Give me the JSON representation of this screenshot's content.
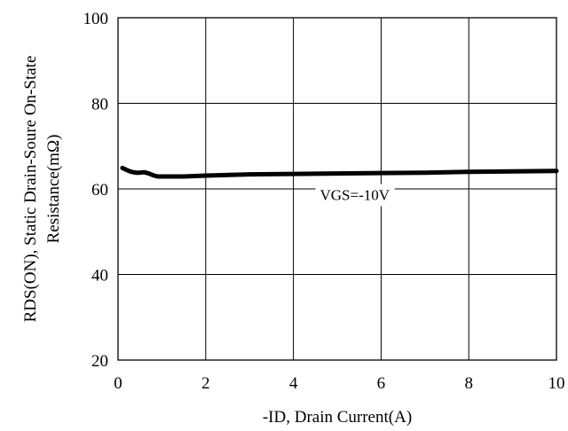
{
  "chart_data": {
    "type": "line",
    "xlim": [
      0,
      10
    ],
    "ylim": [
      20,
      100
    ],
    "x_ticks": [
      "0",
      "2",
      "4",
      "6",
      "8",
      "10"
    ],
    "y_ticks": [
      "20",
      "40",
      "60",
      "80",
      "100"
    ],
    "x_tick_values": [
      0,
      2,
      4,
      6,
      8,
      10
    ],
    "y_tick_values": [
      20,
      40,
      60,
      80,
      100
    ],
    "grid": true,
    "xlabel": "-ID, Drain Current(A)",
    "ylabel_line1": "RDS(ON), Static Drain-Soure On-State",
    "ylabel_line2": "Resistance(mΩ)",
    "series": [
      {
        "name": "VGS=-10V",
        "x": [
          0.1,
          0.2,
          0.3,
          0.4,
          0.5,
          0.6,
          0.7,
          0.8,
          0.9,
          1.0,
          1.5,
          2.0,
          3.0,
          4.0,
          5.0,
          6.0,
          7.0,
          8.0,
          9.0,
          10.0
        ],
        "y": [
          64.9,
          64.4,
          64.0,
          63.8,
          63.8,
          63.9,
          63.6,
          63.2,
          62.9,
          62.9,
          62.9,
          63.1,
          63.4,
          63.5,
          63.6,
          63.7,
          63.8,
          64.0,
          64.1,
          64.2
        ]
      }
    ],
    "annotation": {
      "text": "VGS=-10V",
      "x": 5.4,
      "y": 57.4
    }
  }
}
